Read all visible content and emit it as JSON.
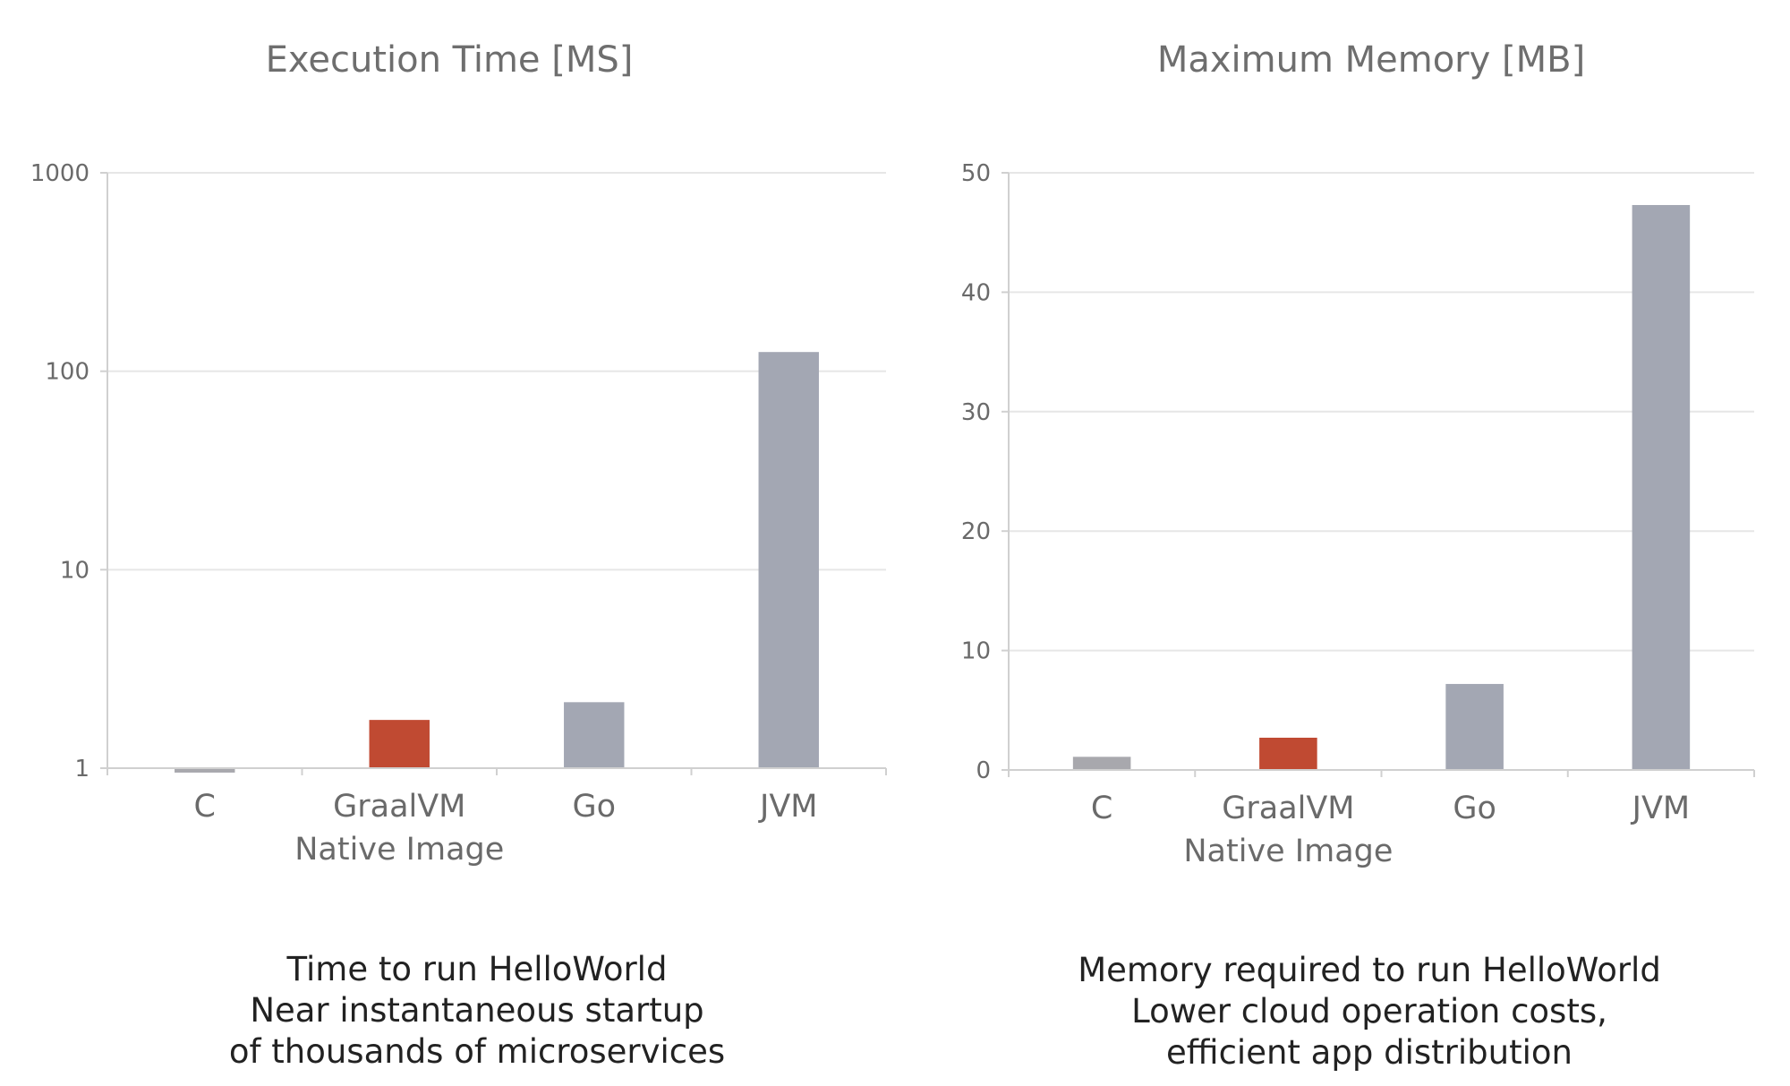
{
  "colors": {
    "bar_default": "#a3a7b3",
    "bar_highlight": "#c04a32",
    "bar_c": "#a8a8ad"
  },
  "chart_data": [
    {
      "type": "bar",
      "title": "Execution Time [MS]",
      "yscale": "log",
      "ylim": [
        1,
        1000
      ],
      "yticks": [
        1,
        10,
        100,
        1000
      ],
      "ytick_labels": [
        "1",
        "10",
        "100",
        "1000"
      ],
      "grid": true,
      "categories": [
        [
          "C"
        ],
        [
          "GraalVM",
          "Native Image"
        ],
        [
          "Go"
        ],
        [
          "JVM"
        ]
      ],
      "values": [
        0.95,
        1.75,
        2.15,
        125
      ],
      "highlight_index": 1,
      "caption": [
        "Time to run HelloWorld",
        "Near instantaneous startup",
        "of thousands of microservices"
      ]
    },
    {
      "type": "bar",
      "title": "Maximum Memory [MB]",
      "yscale": "linear",
      "ylim": [
        0,
        50
      ],
      "yticks": [
        0,
        10,
        20,
        30,
        40,
        50
      ],
      "ytick_labels": [
        "0",
        "10",
        "20",
        "30",
        "40",
        "50"
      ],
      "grid": true,
      "categories": [
        [
          "C"
        ],
        [
          "GraalVM",
          "Native Image"
        ],
        [
          "Go"
        ],
        [
          "JVM"
        ]
      ],
      "values": [
        1.1,
        2.7,
        7.2,
        47.3
      ],
      "highlight_index": 1,
      "caption": [
        "Memory required to run HelloWorld",
        "Lower cloud operation costs,",
        "efficient app distribution"
      ]
    }
  ]
}
